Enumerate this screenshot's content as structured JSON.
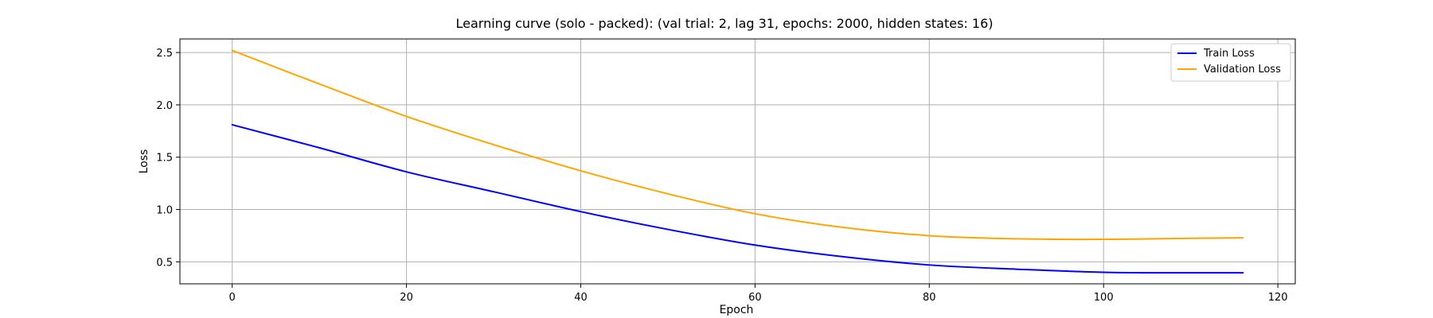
{
  "chart_data": {
    "type": "line",
    "title": "Learning curve (solo - packed): (val trial: 2, lag 31, epochs: 2000, hidden states: 16)",
    "xlabel": "Epoch",
    "ylabel": "Loss",
    "xlim": [
      -6,
      122
    ],
    "ylim": [
      0.29,
      2.63
    ],
    "xticks": [
      0,
      20,
      40,
      60,
      80,
      100,
      120
    ],
    "yticks": [
      0.5,
      1.0,
      1.5,
      2.0,
      2.5
    ],
    "xtick_labels": [
      "0",
      "20",
      "40",
      "60",
      "80",
      "100",
      "120"
    ],
    "ytick_labels": [
      "0.5",
      "1.0",
      "1.5",
      "2.0",
      "2.5"
    ],
    "grid": true,
    "legend_position": "top-right",
    "series": [
      {
        "name": "Train Loss",
        "color": "#0000ff",
        "x": [
          0,
          10,
          20,
          30,
          40,
          50,
          60,
          70,
          80,
          90,
          100,
          110,
          116
        ],
        "values": [
          1.81,
          1.59,
          1.36,
          1.17,
          0.98,
          0.81,
          0.66,
          0.55,
          0.47,
          0.43,
          0.4,
          0.395,
          0.395
        ]
      },
      {
        "name": "Validation Loss",
        "color": "#ffa500",
        "x": [
          0,
          10,
          20,
          30,
          40,
          50,
          60,
          70,
          80,
          90,
          100,
          110,
          116
        ],
        "values": [
          2.52,
          2.2,
          1.89,
          1.62,
          1.37,
          1.15,
          0.96,
          0.83,
          0.75,
          0.72,
          0.715,
          0.725,
          0.73
        ]
      }
    ]
  }
}
